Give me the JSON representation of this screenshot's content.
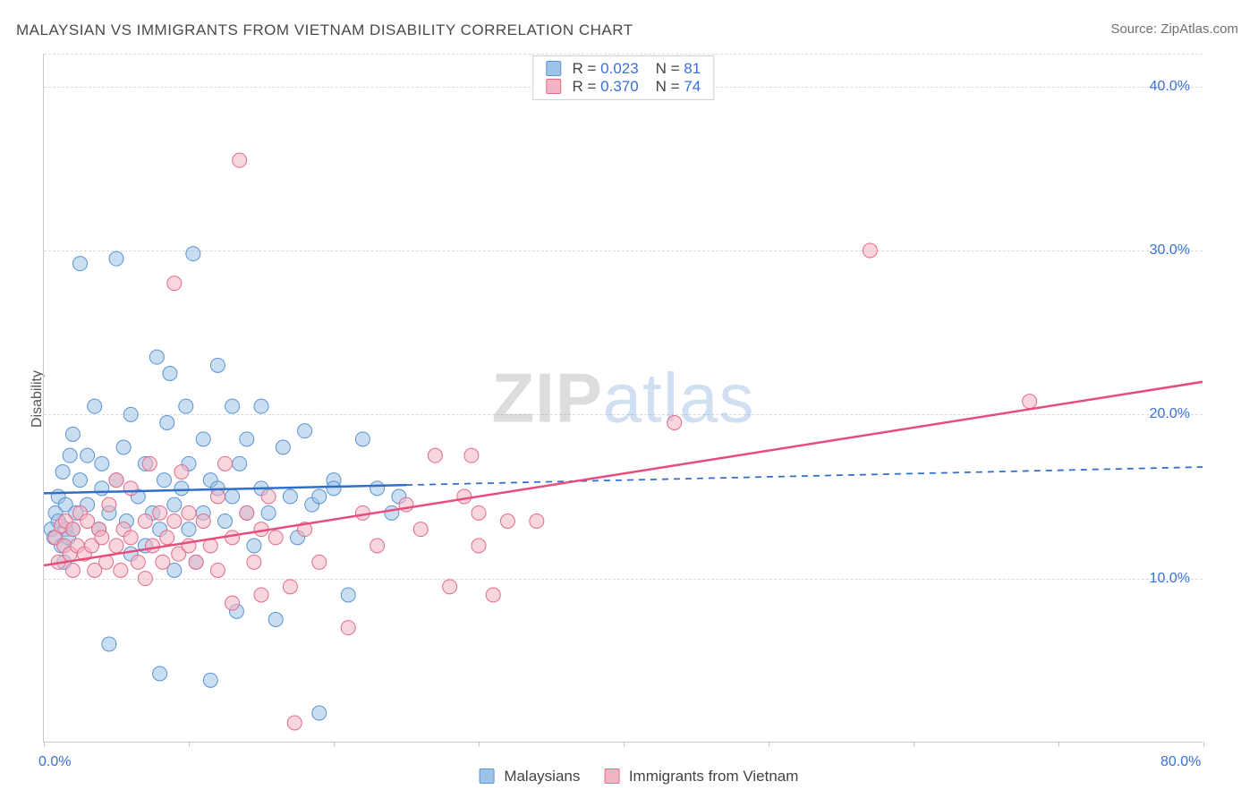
{
  "title": "MALAYSIAN VS IMMIGRANTS FROM VIETNAM DISABILITY CORRELATION CHART",
  "source_label": "Source: ZipAtlas.com",
  "y_axis_label": "Disability",
  "watermark_parts": {
    "z": "Z",
    "i": "I",
    "p": "P",
    "rest": "atlas"
  },
  "chart": {
    "type": "scatter",
    "background_color": "#ffffff",
    "grid_color": "#dcdcdc",
    "axis_color": "#c8c8c8",
    "tick_label_color": "#3a6fd8",
    "tick_fontsize": 16,
    "title_fontsize": 17,
    "title_color": "#4a4a4a",
    "marker_radius": 8,
    "marker_opacity": 0.55,
    "line_width": 2.5,
    "xlim": [
      0,
      80
    ],
    "ylim": [
      0,
      42
    ],
    "y_ticks": [
      10,
      20,
      30,
      40
    ],
    "y_tick_labels": [
      "10.0%",
      "20.0%",
      "30.0%",
      "40.0%"
    ],
    "x_tick_positions": [
      0,
      10,
      20,
      30,
      40,
      50,
      60,
      70,
      80
    ],
    "x_tick_labels_visible": {
      "0": "0.0%",
      "80": "80.0%"
    },
    "series": [
      {
        "id": "malaysians",
        "label": "Malaysians",
        "color_fill": "#9ec3e8",
        "color_stroke": "#5a93d1",
        "line_color": "#2f6fc9",
        "R": "0.023",
        "N": "81",
        "trend": {
          "x1": 0,
          "y1": 15.2,
          "x2": 80,
          "y2": 16.8,
          "solid_until_x": 25
        },
        "points": [
          [
            0.5,
            13.0
          ],
          [
            0.7,
            12.5
          ],
          [
            0.8,
            14.0
          ],
          [
            1.0,
            13.5
          ],
          [
            1.0,
            15.0
          ],
          [
            1.2,
            12.0
          ],
          [
            1.3,
            16.5
          ],
          [
            1.4,
            11.0
          ],
          [
            1.5,
            13.0
          ],
          [
            1.5,
            14.5
          ],
          [
            1.7,
            12.5
          ],
          [
            1.8,
            17.5
          ],
          [
            2.0,
            13.0
          ],
          [
            2.0,
            18.8
          ],
          [
            2.2,
            14.0
          ],
          [
            2.5,
            16.0
          ],
          [
            2.5,
            29.2
          ],
          [
            3.0,
            14.5
          ],
          [
            3.0,
            17.5
          ],
          [
            3.5,
            20.5
          ],
          [
            3.8,
            13.0
          ],
          [
            4.0,
            15.5
          ],
          [
            4.0,
            17.0
          ],
          [
            4.5,
            6.0
          ],
          [
            4.5,
            14.0
          ],
          [
            5.0,
            16.0
          ],
          [
            5.0,
            29.5
          ],
          [
            5.5,
            18.0
          ],
          [
            5.7,
            13.5
          ],
          [
            6.0,
            20.0
          ],
          [
            6.0,
            11.5
          ],
          [
            6.5,
            15.0
          ],
          [
            7.0,
            12.0
          ],
          [
            7.0,
            17.0
          ],
          [
            7.5,
            14.0
          ],
          [
            7.8,
            23.5
          ],
          [
            8.0,
            13.0
          ],
          [
            8.0,
            4.2
          ],
          [
            8.3,
            16.0
          ],
          [
            8.5,
            19.5
          ],
          [
            8.7,
            22.5
          ],
          [
            9.0,
            14.5
          ],
          [
            9.0,
            10.5
          ],
          [
            9.5,
            15.5
          ],
          [
            9.8,
            20.5
          ],
          [
            10.0,
            13.0
          ],
          [
            10.0,
            17.0
          ],
          [
            10.3,
            29.8
          ],
          [
            10.5,
            11.0
          ],
          [
            11.0,
            18.5
          ],
          [
            11.0,
            14.0
          ],
          [
            11.5,
            16.0
          ],
          [
            11.5,
            3.8
          ],
          [
            12.0,
            15.5
          ],
          [
            12.0,
            23.0
          ],
          [
            12.5,
            13.5
          ],
          [
            13.0,
            20.5
          ],
          [
            13.0,
            15.0
          ],
          [
            13.3,
            8.0
          ],
          [
            13.5,
            17.0
          ],
          [
            14.0,
            14.0
          ],
          [
            14.0,
            18.5
          ],
          [
            14.5,
            12.0
          ],
          [
            15.0,
            15.5
          ],
          [
            15.0,
            20.5
          ],
          [
            15.5,
            14.0
          ],
          [
            16.0,
            7.5
          ],
          [
            16.5,
            18.0
          ],
          [
            17.0,
            15.0
          ],
          [
            17.5,
            12.5
          ],
          [
            18.0,
            19.0
          ],
          [
            18.5,
            14.5
          ],
          [
            19.0,
            15.0
          ],
          [
            19.0,
            1.8
          ],
          [
            20.0,
            16.0
          ],
          [
            20.0,
            15.5
          ],
          [
            21.0,
            9.0
          ],
          [
            22.0,
            18.5
          ],
          [
            23.0,
            15.5
          ],
          [
            24.0,
            14.0
          ],
          [
            24.5,
            15.0
          ]
        ]
      },
      {
        "id": "vietnam",
        "label": "Immigrants from Vietnam",
        "color_fill": "#f2b4c3",
        "color_stroke": "#e26b8a",
        "line_color": "#e84c7a",
        "R": "0.370",
        "N": "74",
        "trend": {
          "x1": 0,
          "y1": 10.8,
          "x2": 80,
          "y2": 22.0,
          "solid_until_x": 80
        },
        "points": [
          [
            0.8,
            12.5
          ],
          [
            1.0,
            11.0
          ],
          [
            1.2,
            13.2
          ],
          [
            1.4,
            12.0
          ],
          [
            1.5,
            13.5
          ],
          [
            1.8,
            11.5
          ],
          [
            2.0,
            13.0
          ],
          [
            2.0,
            10.5
          ],
          [
            2.3,
            12.0
          ],
          [
            2.5,
            14.0
          ],
          [
            2.8,
            11.5
          ],
          [
            3.0,
            13.5
          ],
          [
            3.3,
            12.0
          ],
          [
            3.5,
            10.5
          ],
          [
            3.8,
            13.0
          ],
          [
            4.0,
            12.5
          ],
          [
            4.3,
            11.0
          ],
          [
            4.5,
            14.5
          ],
          [
            5.0,
            12.0
          ],
          [
            5.0,
            16.0
          ],
          [
            5.3,
            10.5
          ],
          [
            5.5,
            13.0
          ],
          [
            6.0,
            12.5
          ],
          [
            6.0,
            15.5
          ],
          [
            6.5,
            11.0
          ],
          [
            7.0,
            13.5
          ],
          [
            7.0,
            10.0
          ],
          [
            7.3,
            17.0
          ],
          [
            7.5,
            12.0
          ],
          [
            8.0,
            14.0
          ],
          [
            8.2,
            11.0
          ],
          [
            8.5,
            12.5
          ],
          [
            9.0,
            13.5
          ],
          [
            9.0,
            28.0
          ],
          [
            9.3,
            11.5
          ],
          [
            9.5,
            16.5
          ],
          [
            10.0,
            12.0
          ],
          [
            10.0,
            14.0
          ],
          [
            10.5,
            11.0
          ],
          [
            11.0,
            13.5
          ],
          [
            11.5,
            12.0
          ],
          [
            12.0,
            10.5
          ],
          [
            12.0,
            15.0
          ],
          [
            12.5,
            17.0
          ],
          [
            13.0,
            12.5
          ],
          [
            13.0,
            8.5
          ],
          [
            13.5,
            35.5
          ],
          [
            14.0,
            14.0
          ],
          [
            14.5,
            11.0
          ],
          [
            15.0,
            13.0
          ],
          [
            15.0,
            9.0
          ],
          [
            15.5,
            15.0
          ],
          [
            16.0,
            12.5
          ],
          [
            17.0,
            9.5
          ],
          [
            17.3,
            1.2
          ],
          [
            18.0,
            13.0
          ],
          [
            19.0,
            11.0
          ],
          [
            21.0,
            7.0
          ],
          [
            22.0,
            14.0
          ],
          [
            23.0,
            12.0
          ],
          [
            25.0,
            14.5
          ],
          [
            26.0,
            13.0
          ],
          [
            27.0,
            17.5
          ],
          [
            28.0,
            9.5
          ],
          [
            29.0,
            15.0
          ],
          [
            29.5,
            17.5
          ],
          [
            30.0,
            12.0
          ],
          [
            30.0,
            14.0
          ],
          [
            31.0,
            9.0
          ],
          [
            32.0,
            13.5
          ],
          [
            34.0,
            13.5
          ],
          [
            43.5,
            19.5
          ],
          [
            57.0,
            30.0
          ],
          [
            68.0,
            20.8
          ]
        ]
      }
    ]
  },
  "legend_top_labels": {
    "R": "R =",
    "N": "N ="
  }
}
